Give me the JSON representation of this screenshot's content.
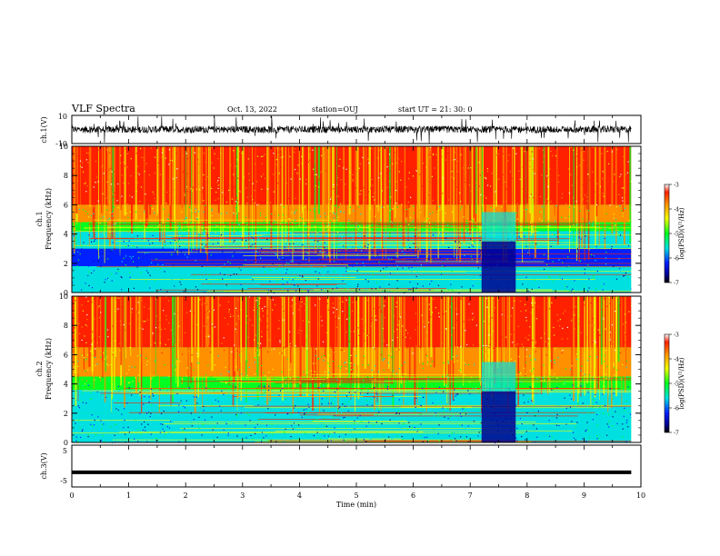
{
  "header": {
    "title": "VLF Spectra",
    "date": "Oct. 13, 2022",
    "station": "station=OUJ",
    "start": "start  UT =  21: 30: 0"
  },
  "colors": {
    "c_red": "#ff2000",
    "c_orange": "#ff9000",
    "c_yellow": "#f0ff00",
    "c_green": "#00ff20",
    "c_cyan": "#00e0e0",
    "c_blue": "#0020ff",
    "c_navy": "#000090"
  },
  "chart_data": [
    {
      "type": "line",
      "panel": "ch1-waveform",
      "ylabel": "ch.1(V)",
      "ylim": [
        -10,
        10
      ],
      "ytick_labels": [
        "10",
        "-10"
      ],
      "xlim": [
        0,
        10
      ],
      "description_series": "noisy waveform centered near 0 V with spikes reaching about ±10 V"
    },
    {
      "type": "heatmap",
      "panel": "ch1-spectrogram",
      "ylabel_top": "ch.1",
      "ylabel": "Frequency (kHz)",
      "ylim": [
        0,
        10
      ],
      "ytick_labels": [
        "0",
        "2",
        "4",
        "6",
        "8",
        "10"
      ],
      "xlim": [
        0,
        9.83
      ],
      "colorbar": {
        "label": "log(PSD)(V²/Hz)",
        "range": [
          -7,
          -3
        ],
        "tick_labels": [
          "-7",
          "-6",
          "-5",
          "-4",
          "-3"
        ]
      },
      "bands_khz": [
        {
          "from": 6.0,
          "to": 10.0,
          "level": -3.3
        },
        {
          "from": 4.8,
          "to": 6.0,
          "level": -3.8
        },
        {
          "from": 4.2,
          "to": 4.8,
          "level": -4.5
        },
        {
          "from": 3.0,
          "to": 4.2,
          "level": -5.2
        },
        {
          "from": 1.8,
          "to": 3.0,
          "level": -5.8
        },
        {
          "from": 0.0,
          "to": 1.8,
          "level": -5.0
        }
      ],
      "dark_intervals_min": [
        [
          7.2,
          7.8
        ]
      ]
    },
    {
      "type": "heatmap",
      "panel": "ch2-spectrogram",
      "ylabel_top": "ch.2",
      "ylabel": "Frequency (kHz)",
      "ylim": [
        0,
        10
      ],
      "ytick_labels": [
        "0",
        "2",
        "4",
        "6",
        "8",
        "10"
      ],
      "xlim": [
        0,
        9.83
      ],
      "colorbar": {
        "label": "log(PSD)(V²/Hz)",
        "range": [
          -7,
          -3
        ],
        "tick_labels": [
          "-7",
          "-6",
          "-5",
          "-4",
          "-3"
        ]
      },
      "bands_khz": [
        {
          "from": 6.5,
          "to": 10.0,
          "level": -3.4
        },
        {
          "from": 4.5,
          "to": 6.5,
          "level": -3.9
        },
        {
          "from": 3.6,
          "to": 4.5,
          "level": -4.6
        },
        {
          "from": 2.0,
          "to": 3.6,
          "level": -5.4
        },
        {
          "from": 0.0,
          "to": 2.0,
          "level": -5.0
        }
      ],
      "dark_intervals_min": [
        [
          7.2,
          7.8
        ]
      ]
    },
    {
      "type": "line",
      "panel": "ch3-waveform",
      "ylabel": "ch.3(V)",
      "ylim": [
        -5,
        5
      ],
      "ytick_labels": [
        "5",
        "-5"
      ],
      "xlim": [
        0,
        10
      ],
      "constant_value": -1.5
    }
  ],
  "xaxis": {
    "label": "Time (min)",
    "tick_labels": [
      "0",
      "1",
      "2",
      "3",
      "4",
      "5",
      "6",
      "7",
      "8",
      "9",
      "10"
    ],
    "range": [
      0,
      10
    ]
  }
}
